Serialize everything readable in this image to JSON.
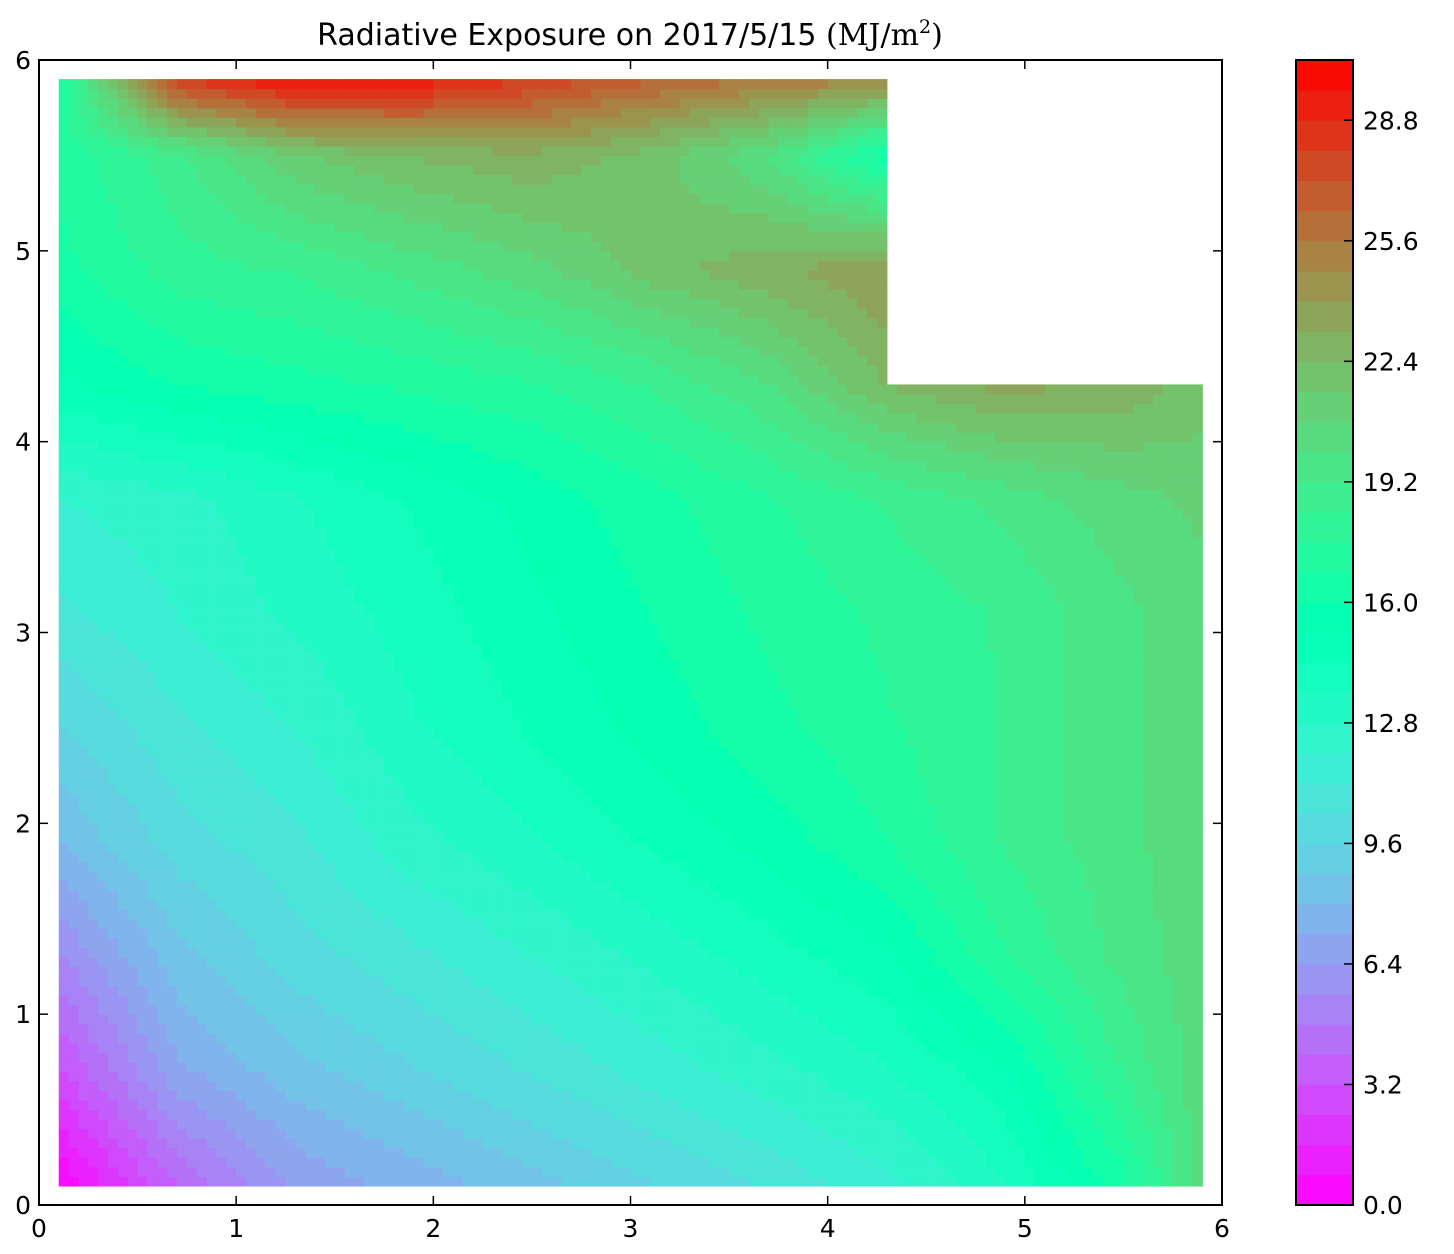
{
  "chart_data": {
    "type": "heatmap",
    "subtype": "filled-contour",
    "title": {
      "text": "Radiative Exposure on 2017/5/15 ",
      "unit_base": "MJ/m",
      "unit_exp": "2",
      "unit_open": "(",
      "unit_close": ")"
    },
    "xlabel": "",
    "ylabel": "",
    "xlim": [
      0,
      6
    ],
    "ylim": [
      0,
      6
    ],
    "xticks": [
      0,
      1,
      2,
      3,
      4,
      5,
      6
    ],
    "yticks": [
      0,
      1,
      2,
      3,
      4,
      5,
      6
    ],
    "xtick_labels": [
      "0",
      "1",
      "2",
      "3",
      "4",
      "5",
      "6"
    ],
    "ytick_labels": [
      "0",
      "1",
      "2",
      "3",
      "4",
      "5",
      "6"
    ],
    "grid": false,
    "colormap": "rainbow",
    "colorbar": {
      "min": 0.0,
      "max": 30.4,
      "levels": 38,
      "ticks": [
        0.0,
        3.2,
        6.4,
        9.6,
        12.8,
        16.0,
        19.2,
        22.4,
        25.6,
        28.8
      ],
      "tick_labels": [
        "0.0",
        "3.2",
        "6.4",
        "9.6",
        "12.8",
        "16.0",
        "19.2",
        "22.4",
        "25.6",
        "28.8"
      ],
      "placement": "right"
    },
    "data_domain": {
      "x_range": [
        0.1,
        5.9
      ],
      "y_range": [
        0.1,
        5.9
      ],
      "masked_region": {
        "x_range": [
          4.3,
          5.9
        ],
        "y_range": [
          4.3,
          5.9
        ]
      }
    },
    "grid_x": [
      0.1,
      0.7,
      1.3,
      1.9,
      2.5,
      3.1,
      3.7,
      4.3,
      4.9,
      5.5,
      5.9
    ],
    "grid_y": [
      0.1,
      0.7,
      1.3,
      1.9,
      2.5,
      3.1,
      3.7,
      4.3,
      4.9,
      5.5,
      5.9
    ],
    "values": [
      [
        0.0,
        4.0,
        6.5,
        7.5,
        8.5,
        9.5,
        10.5,
        11.8,
        13.5,
        16.5,
        20.5
      ],
      [
        3.0,
        7.0,
        8.5,
        9.5,
        10.5,
        11.5,
        12.5,
        13.5,
        15.0,
        18.5,
        20.5
      ],
      [
        5.5,
        8.5,
        10.0,
        11.0,
        12.0,
        13.0,
        14.0,
        15.0,
        17.5,
        19.5,
        20.5
      ],
      [
        8.0,
        10.0,
        11.0,
        12.5,
        13.5,
        14.5,
        15.5,
        16.8,
        18.5,
        19.8,
        20.5
      ],
      [
        9.5,
        11.0,
        12.0,
        13.5,
        14.5,
        15.5,
        16.5,
        17.5,
        18.5,
        19.8,
        20.5
      ],
      [
        11.0,
        12.0,
        13.0,
        14.0,
        15.0,
        16.0,
        17.0,
        17.8,
        18.5,
        19.8,
        20.5
      ],
      [
        12.0,
        12.5,
        13.5,
        14.5,
        15.5,
        16.5,
        17.5,
        18.5,
        19.5,
        20.5,
        21.0
      ],
      [
        15.0,
        16.0,
        16.5,
        17.0,
        17.5,
        18.5,
        20.0,
        22.5,
        23.5,
        23.0,
        22.0
      ],
      [
        16.5,
        18.0,
        18.5,
        19.5,
        20.5,
        22.0,
        23.0,
        24.0,
        null,
        null,
        null
      ],
      [
        17.0,
        19.0,
        21.5,
        22.5,
        23.0,
        22.0,
        20.0,
        16.0,
        null,
        null,
        null
      ],
      [
        17.0,
        28.0,
        30.0,
        29.5,
        28.0,
        26.5,
        25.5,
        25.0,
        null,
        null,
        null
      ]
    ]
  }
}
